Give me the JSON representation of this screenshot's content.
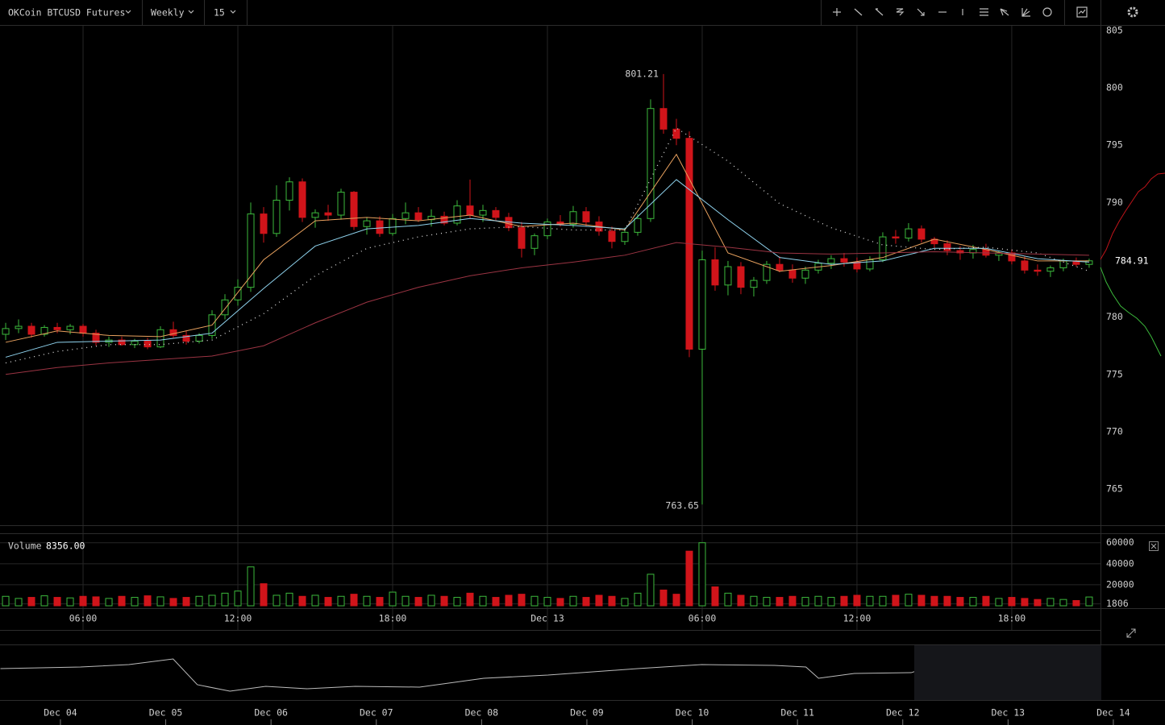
{
  "toolbar": {
    "symbol": "OKCoin BTCUSD Futures",
    "range": "Weekly",
    "interval": "15"
  },
  "chart_data": [
    {
      "type": "candlestick",
      "x": [
        3,
        3.5,
        4,
        4.5,
        5,
        5.5,
        6,
        6.5,
        7,
        7.5,
        8,
        8.5,
        9,
        9.5,
        10,
        10.5,
        11,
        11.5,
        12,
        12.5,
        13,
        13.5,
        14,
        14.5,
        15,
        15.5,
        16,
        16.5,
        17,
        17.5,
        18,
        18.5,
        19,
        19.5,
        20,
        20.5,
        21,
        21.5,
        22,
        22.5,
        23,
        23.5,
        24,
        24.5,
        25,
        25.5,
        26,
        26.5,
        27,
        27.5,
        28,
        28.5,
        29,
        29.5,
        30,
        30.5,
        31,
        31.5,
        32,
        32.5,
        33,
        33.5,
        34,
        34.5,
        35,
        35.5,
        36,
        36.5,
        37,
        37.5,
        38,
        38.5,
        39,
        39.5,
        40,
        40.5,
        41,
        41.5,
        42,
        42.5,
        43,
        43.5,
        44,
        44.5,
        45
      ],
      "open": [
        778.5,
        779,
        779.2,
        778.5,
        779.1,
        778.9,
        779.2,
        778.6,
        777.8,
        778,
        777.6,
        777.9,
        777.4,
        778.9,
        778.4,
        777.9,
        778.4,
        780.2,
        781.5,
        782.6,
        789,
        787.3,
        790.2,
        791.8,
        788.7,
        789.1,
        788.9,
        790.9,
        787.9,
        788.4,
        787.3,
        788.6,
        789.1,
        788.5,
        788.8,
        788.2,
        789.7,
        788.9,
        789.3,
        788.7,
        787.8,
        786,
        787.1,
        788.3,
        788.1,
        789.2,
        788.3,
        787.5,
        786.6,
        787.4,
        788.6,
        798.2,
        796.4,
        795.6,
        777.2,
        785,
        782.8,
        784.4,
        782.6,
        783.2,
        784.6,
        784.1,
        783.4,
        784.1,
        784.7,
        785.1,
        784.8,
        784.2,
        785,
        787,
        786.9,
        787.7,
        786.8,
        786.4,
        785.8,
        785.6,
        785.9,
        785.4,
        785.6,
        784.9,
        784.1,
        784,
        784.3,
        784.9,
        784.6
      ],
      "high": [
        779.5,
        779.8,
        779.5,
        779.3,
        779.5,
        779.4,
        779.4,
        778.9,
        778.3,
        778.3,
        778.1,
        778.2,
        779.2,
        779.6,
        778.8,
        778.6,
        780.6,
        782,
        783.3,
        790,
        789.6,
        791.5,
        792.2,
        792.1,
        789.4,
        789.8,
        791.2,
        791,
        788.7,
        788.8,
        789,
        790,
        789.6,
        789.4,
        789.2,
        790.2,
        792,
        789.8,
        789.6,
        789.1,
        788.3,
        787.3,
        788.6,
        788.9,
        789.7,
        789.6,
        788.8,
        787.9,
        787.8,
        789,
        799,
        801.21,
        797.3,
        796.2,
        785.8,
        786.1,
        784.9,
        784.8,
        783.5,
        784.9,
        785.3,
        784.6,
        784.4,
        785,
        785.4,
        785.6,
        785.2,
        785.3,
        787.4,
        787.6,
        788.2,
        788,
        787,
        786.7,
        786.2,
        786.3,
        786.4,
        785.8,
        785.9,
        785.3,
        784.6,
        784.5,
        785.1,
        785.2,
        785.1
      ],
      "low": [
        778,
        778.6,
        778.2,
        778.3,
        778.6,
        778.5,
        778.3,
        777.5,
        777.4,
        777.5,
        777.3,
        777.2,
        777.3,
        778.2,
        777.6,
        777.7,
        778.1,
        779.8,
        781,
        782.2,
        786.5,
        787,
        789.3,
        788.3,
        787.8,
        788.4,
        788.5,
        787.6,
        787.2,
        787,
        787.1,
        788.1,
        788.3,
        787.9,
        788,
        788,
        788.6,
        788.3,
        788.4,
        787.5,
        785.2,
        785.4,
        786.8,
        787.9,
        787.8,
        787.9,
        787.1,
        786,
        786.3,
        787.1,
        788.3,
        796,
        795,
        776.5,
        763.65,
        782.3,
        781.9,
        782,
        781.8,
        782.9,
        783.9,
        783,
        782.9,
        783.8,
        784.2,
        784.4,
        783.9,
        784,
        784.8,
        786.4,
        786.6,
        786.5,
        786,
        785.4,
        785,
        785.1,
        785.2,
        784.9,
        784.6,
        783.8,
        783.6,
        783.5,
        784,
        784.4,
        784.3
      ],
      "close": [
        779,
        779.2,
        778.5,
        779.1,
        778.9,
        779.2,
        778.6,
        777.8,
        778,
        777.6,
        777.9,
        777.4,
        778.9,
        778.4,
        777.9,
        778.4,
        780.2,
        781.5,
        782.6,
        789,
        787.3,
        790.2,
        791.8,
        788.7,
        789.1,
        788.9,
        790.9,
        787.9,
        788.4,
        787.3,
        788.6,
        789.1,
        788.5,
        788.8,
        788.2,
        789.7,
        788.9,
        789.3,
        788.7,
        787.8,
        786,
        787.1,
        788.3,
        788.1,
        789.2,
        788.3,
        787.5,
        786.6,
        787.4,
        788.6,
        798.2,
        796.4,
        795.6,
        777.2,
        785,
        782.8,
        784.4,
        782.6,
        783.2,
        784.6,
        784.1,
        783.4,
        784.1,
        784.7,
        785.1,
        784.8,
        784.2,
        785,
        787,
        786.9,
        787.7,
        786.8,
        786.4,
        785.8,
        785.6,
        785.9,
        785.4,
        785.6,
        784.9,
        784.1,
        784,
        784.3,
        784.9,
        784.6,
        784.91
      ],
      "up_color": "#3cb93c",
      "down_color": "#d0141a",
      "line_x": [
        3,
        5,
        7,
        9,
        11,
        13,
        15,
        17,
        19,
        21,
        23,
        25,
        27,
        29,
        31,
        33,
        35,
        37,
        39,
        41,
        43,
        45
      ],
      "lines": [
        {
          "color": "#e8a15e",
          "style": "solid",
          "values": [
            777.8,
            778.8,
            778.4,
            778.3,
            779.3,
            785,
            788.4,
            788.7,
            788.4,
            788.9,
            787.9,
            788.2,
            787.6,
            794.2,
            785.6,
            784,
            784.5,
            785.2,
            786.8,
            785.9,
            784.9,
            784.9
          ]
        },
        {
          "color": "#8fd3ee",
          "style": "solid",
          "values": [
            776.5,
            777.8,
            777.9,
            778,
            778.6,
            782.5,
            786.2,
            787.7,
            788,
            788.6,
            788.2,
            788,
            787.7,
            792,
            788.5,
            785.2,
            784.6,
            784.9,
            786,
            786,
            785.1,
            784.8
          ]
        },
        {
          "color": "#dddddd",
          "style": "dotted",
          "values": [
            776,
            777,
            777.6,
            777.6,
            778,
            780.3,
            783.6,
            786,
            787,
            787.7,
            787.9,
            787.6,
            787.6,
            796.5,
            793.6,
            789.9,
            787.8,
            786.3,
            785.9,
            786.1,
            785.6,
            784
          ]
        },
        {
          "color": "#9b3443",
          "style": "solid",
          "values": [
            775,
            775.6,
            776,
            776.3,
            776.6,
            777.5,
            779.5,
            781.3,
            782.6,
            783.6,
            784.3,
            784.8,
            785.4,
            786.5,
            786.1,
            785.6,
            785.5,
            785.6,
            785.7,
            785.6,
            785.5,
            785.4
          ]
        }
      ],
      "xlim": [
        2.78,
        45.44
      ],
      "xticks": [
        {
          "value": 6,
          "label": "06:00"
        },
        {
          "value": 12,
          "label": "12:00"
        },
        {
          "value": 18,
          "label": "18:00"
        },
        {
          "value": 24,
          "label": "Dec 13"
        },
        {
          "value": 30,
          "label": "06:00"
        },
        {
          "value": 36,
          "label": "12:00"
        },
        {
          "value": 42,
          "label": "18:00"
        }
      ],
      "ylim": [
        761.84,
        805.42
      ],
      "yticks": [
        765,
        770,
        775,
        780,
        785,
        790,
        795,
        800,
        805
      ],
      "high_label": 801.21,
      "low_label": 763.65,
      "last_price": 784.91,
      "grid": true
    },
    {
      "type": "bar",
      "title": "Volume",
      "current": {
        "value": 8356,
        "label": "8356.00"
      },
      "values": [
        9000,
        7000,
        8000,
        9500,
        8000,
        7500,
        9000,
        8500,
        7000,
        9000,
        8000,
        9500,
        8500,
        7000,
        8000,
        9000,
        10000,
        12000,
        14000,
        37000,
        21000,
        10000,
        12000,
        9000,
        10000,
        8000,
        9000,
        11000,
        9000,
        8000,
        13000,
        9000,
        8000,
        10000,
        9000,
        8000,
        12000,
        9000,
        8000,
        10000,
        11000,
        9000,
        8000,
        7000,
        9000,
        8000,
        10000,
        9000,
        7000,
        12000,
        30000,
        15000,
        11000,
        52000,
        60000,
        18000,
        12000,
        10000,
        9000,
        8000,
        8000,
        9000,
        8000,
        9000,
        8000,
        9000,
        10000,
        9000,
        9000,
        10000,
        11000,
        10000,
        9000,
        9000,
        8000,
        8000,
        9000,
        7000,
        8000,
        7000,
        6000,
        7000,
        6000,
        5000,
        8356
      ],
      "ylim": [
        0,
        69000
      ],
      "yticks": [
        1806,
        20000,
        40000,
        60000
      ]
    },
    {
      "type": "line",
      "color": "#bbbbbb",
      "x": [
        3.43,
        4.19,
        4.65,
        5.07,
        5.3,
        5.61,
        5.95,
        6.34,
        6.8,
        7.41,
        8.02,
        8.63,
        9.48,
        10.09,
        10.78,
        11.08,
        11.2,
        11.54,
        12.08,
        12.54,
        13.15,
        13.21,
        13.25,
        13.88
      ],
      "values": [
        775.6,
        777.5,
        780.3,
        786.9,
        756.9,
        749.4,
        755,
        752.2,
        755,
        754.1,
        764.4,
        768.1,
        775.6,
        780.3,
        779.4,
        777.5,
        764.4,
        770,
        770.9,
        789.7,
        789.7,
        798.1,
        780.3,
        782.2
      ],
      "xlim": [
        3.426,
        13.878
      ],
      "ylim": [
        740,
        800
      ],
      "xticks": [
        {
          "value": 4,
          "label": "Dec 04"
        },
        {
          "value": 5,
          "label": "Dec 05"
        },
        {
          "value": 6,
          "label": "Dec 06"
        },
        {
          "value": 7,
          "label": "Dec 07"
        },
        {
          "value": 8,
          "label": "Dec 08"
        },
        {
          "value": 9,
          "label": "Dec 09"
        },
        {
          "value": 10,
          "label": "Dec 10"
        },
        {
          "value": 11,
          "label": "Dec 11"
        },
        {
          "value": 12,
          "label": "Dec 12"
        },
        {
          "value": 13,
          "label": "Dec 13"
        },
        {
          "value": 14,
          "label": "Dec 14"
        }
      ]
    }
  ]
}
